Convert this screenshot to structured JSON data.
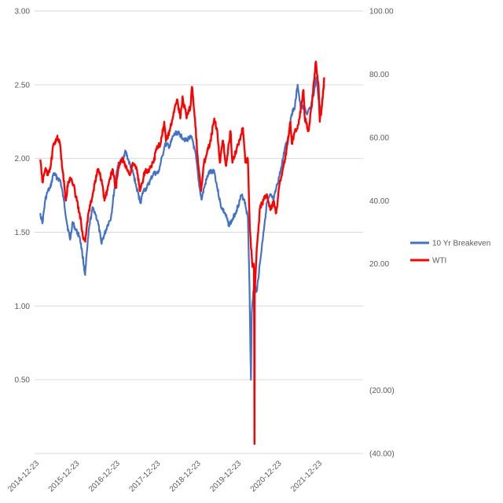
{
  "chart_data": {
    "type": "line",
    "title": "",
    "y_left": {
      "min": 0.0,
      "max": 3.0,
      "ticks": [
        "3.00",
        "2.50",
        "2.00",
        "1.50",
        "1.00",
        "0.50",
        ""
      ]
    },
    "y_right": {
      "min": -40,
      "max": 100,
      "ticks": [
        "100.00",
        "80.00",
        "60.00",
        "40.00",
        "20.00",
        "",
        "(20.00)",
        "(40.00)"
      ]
    },
    "x_ticks": [
      "2014-12-23",
      "2015-12-23",
      "2016-12-23",
      "2017-12-23",
      "2018-12-23",
      "2019-12-23",
      "2020-12-23",
      "2021-12-23"
    ],
    "grid": "horizontal",
    "legend_position": "right",
    "series": [
      {
        "name": "10 Yr Breakeven",
        "axis": "left",
        "color": "#4472C4",
        "points": [
          [
            "2015-01-01",
            1.63
          ],
          [
            "2015-01-20",
            1.56
          ],
          [
            "2015-02-15",
            1.72
          ],
          [
            "2015-03-10",
            1.78
          ],
          [
            "2015-04-01",
            1.8
          ],
          [
            "2015-05-01",
            1.9
          ],
          [
            "2015-06-01",
            1.87
          ],
          [
            "2015-07-01",
            1.85
          ],
          [
            "2015-08-01",
            1.72
          ],
          [
            "2015-09-01",
            1.55
          ],
          [
            "2015-09-28",
            1.45
          ],
          [
            "2015-10-20",
            1.57
          ],
          [
            "2015-11-15",
            1.52
          ],
          [
            "2015-12-23",
            1.47
          ],
          [
            "2016-01-15",
            1.36
          ],
          [
            "2016-02-10",
            1.21
          ],
          [
            "2016-02-28",
            1.38
          ],
          [
            "2016-03-20",
            1.55
          ],
          [
            "2016-04-20",
            1.67
          ],
          [
            "2016-05-15",
            1.62
          ],
          [
            "2016-06-10",
            1.55
          ],
          [
            "2016-07-05",
            1.43
          ],
          [
            "2016-08-01",
            1.48
          ],
          [
            "2016-09-01",
            1.55
          ],
          [
            "2016-10-01",
            1.6
          ],
          [
            "2016-11-10",
            1.85
          ],
          [
            "2016-12-01",
            1.95
          ],
          [
            "2017-01-15",
            2.0
          ],
          [
            "2017-02-10",
            2.05
          ],
          [
            "2017-03-10",
            1.98
          ],
          [
            "2017-04-20",
            1.9
          ],
          [
            "2017-05-20",
            1.8
          ],
          [
            "2017-06-25",
            1.7
          ],
          [
            "2017-07-20",
            1.78
          ],
          [
            "2017-08-20",
            1.8
          ],
          [
            "2017-09-20",
            1.85
          ],
          [
            "2017-10-20",
            1.9
          ],
          [
            "2017-12-01",
            1.9
          ],
          [
            "2018-01-10",
            2.02
          ],
          [
            "2018-02-01",
            2.1
          ],
          [
            "2018-03-15",
            2.08
          ],
          [
            "2018-04-15",
            2.15
          ],
          [
            "2018-05-20",
            2.18
          ],
          [
            "2018-07-01",
            2.15
          ],
          [
            "2018-08-15",
            2.12
          ],
          [
            "2018-09-15",
            2.15
          ],
          [
            "2018-10-10",
            2.12
          ],
          [
            "2018-11-10",
            2.0
          ],
          [
            "2018-12-01",
            1.85
          ],
          [
            "2018-12-28",
            1.72
          ],
          [
            "2019-01-20",
            1.8
          ],
          [
            "2019-03-01",
            1.9
          ],
          [
            "2019-04-20",
            1.92
          ],
          [
            "2019-05-20",
            1.8
          ],
          [
            "2019-06-20",
            1.68
          ],
          [
            "2019-08-01",
            1.62
          ],
          [
            "2019-09-01",
            1.55
          ],
          [
            "2019-10-01",
            1.58
          ],
          [
            "2019-11-10",
            1.65
          ],
          [
            "2019-12-23",
            1.75
          ],
          [
            "2020-01-20",
            1.72
          ],
          [
            "2020-02-20",
            1.6
          ],
          [
            "2020-03-05",
            1.15
          ],
          [
            "2020-03-12",
            0.8
          ],
          [
            "2020-03-19",
            0.5
          ],
          [
            "2020-03-26",
            0.95
          ],
          [
            "2020-04-15",
            1.15
          ],
          [
            "2020-05-10",
            1.1
          ],
          [
            "2020-06-10",
            1.3
          ],
          [
            "2020-07-10",
            1.5
          ],
          [
            "2020-08-10",
            1.7
          ],
          [
            "2020-09-10",
            1.75
          ],
          [
            "2020-10-10",
            1.72
          ],
          [
            "2020-11-10",
            1.82
          ],
          [
            "2020-12-23",
            1.95
          ],
          [
            "2021-01-20",
            2.08
          ],
          [
            "2021-02-20",
            2.15
          ],
          [
            "2021-03-20",
            2.3
          ],
          [
            "2021-04-20",
            2.35
          ],
          [
            "2021-05-15",
            2.5
          ],
          [
            "2021-06-10",
            2.35
          ],
          [
            "2021-07-10",
            2.35
          ],
          [
            "2021-08-10",
            2.3
          ],
          [
            "2021-09-10",
            2.35
          ],
          [
            "2021-10-10",
            2.45
          ],
          [
            "2021-10-30",
            2.55
          ],
          [
            "2021-11-20",
            2.4
          ],
          [
            "2021-12-10",
            2.3
          ],
          [
            "2021-12-28",
            2.42
          ],
          [
            "2022-01-10",
            2.5
          ]
        ]
      },
      {
        "name": "WTI",
        "axis": "right",
        "color": "#FF0000",
        "points": [
          [
            "2015-01-01",
            53
          ],
          [
            "2015-01-20",
            46
          ],
          [
            "2015-02-15",
            50
          ],
          [
            "2015-03-10",
            48
          ],
          [
            "2015-04-01",
            50
          ],
          [
            "2015-05-01",
            58
          ],
          [
            "2015-06-01",
            60
          ],
          [
            "2015-06-28",
            58
          ],
          [
            "2015-07-20",
            50
          ],
          [
            "2015-08-20",
            40
          ],
          [
            "2015-09-10",
            46
          ],
          [
            "2015-10-05",
            47
          ],
          [
            "2015-11-01",
            45
          ],
          [
            "2015-11-20",
            41
          ],
          [
            "2015-12-23",
            36
          ],
          [
            "2016-01-20",
            29
          ],
          [
            "2016-02-11",
            27
          ],
          [
            "2016-03-10",
            36
          ],
          [
            "2016-04-15",
            41
          ],
          [
            "2016-05-20",
            48
          ],
          [
            "2016-06-10",
            50
          ],
          [
            "2016-07-15",
            45
          ],
          [
            "2016-08-03",
            40
          ],
          [
            "2016-09-01",
            44
          ],
          [
            "2016-10-15",
            50
          ],
          [
            "2016-11-14",
            44
          ],
          [
            "2016-12-15",
            52
          ],
          [
            "2017-01-20",
            53
          ],
          [
            "2017-03-20",
            48
          ],
          [
            "2017-04-15",
            52
          ],
          [
            "2017-05-20",
            50
          ],
          [
            "2017-06-21",
            43
          ],
          [
            "2017-08-01",
            49
          ],
          [
            "2017-09-15",
            50
          ],
          [
            "2017-10-20",
            52
          ],
          [
            "2017-11-20",
            57
          ],
          [
            "2017-12-23",
            58
          ],
          [
            "2018-01-25",
            65
          ],
          [
            "2018-02-09",
            59
          ],
          [
            "2018-03-15",
            62
          ],
          [
            "2018-04-20",
            68
          ],
          [
            "2018-05-20",
            72
          ],
          [
            "2018-06-20",
            66
          ],
          [
            "2018-07-10",
            73
          ],
          [
            "2018-08-15",
            66
          ],
          [
            "2018-09-20",
            70
          ],
          [
            "2018-10-03",
            76
          ],
          [
            "2018-10-30",
            66
          ],
          [
            "2018-11-20",
            55
          ],
          [
            "2018-12-24",
            43
          ],
          [
            "2019-01-20",
            52
          ],
          [
            "2019-02-20",
            56
          ],
          [
            "2019-03-20",
            59
          ],
          [
            "2019-04-23",
            66
          ],
          [
            "2019-05-20",
            62
          ],
          [
            "2019-06-12",
            52
          ],
          [
            "2019-07-10",
            59
          ],
          [
            "2019-08-07",
            51
          ],
          [
            "2019-09-16",
            62
          ],
          [
            "2019-10-03",
            52
          ],
          [
            "2019-11-15",
            57
          ],
          [
            "2019-12-23",
            61
          ],
          [
            "2020-01-06",
            63
          ],
          [
            "2020-01-30",
            52
          ],
          [
            "2020-02-20",
            53
          ],
          [
            "2020-03-09",
            31
          ],
          [
            "2020-03-30",
            20
          ],
          [
            "2020-04-15",
            19
          ],
          [
            "2020-04-20",
            -37
          ],
          [
            "2020-04-21",
            10
          ],
          [
            "2020-05-10",
            25
          ],
          [
            "2020-06-10",
            38
          ],
          [
            "2020-07-10",
            40
          ],
          [
            "2020-08-10",
            42
          ],
          [
            "2020-09-10",
            37
          ],
          [
            "2020-10-10",
            40
          ],
          [
            "2020-11-02",
            36
          ],
          [
            "2020-12-01",
            45
          ],
          [
            "2020-12-23",
            48
          ],
          [
            "2021-01-20",
            53
          ],
          [
            "2021-02-20",
            60
          ],
          [
            "2021-03-10",
            65
          ],
          [
            "2021-03-23",
            58
          ],
          [
            "2021-04-20",
            62
          ],
          [
            "2021-05-20",
            64
          ],
          [
            "2021-06-20",
            71
          ],
          [
            "2021-07-06",
            75
          ],
          [
            "2021-07-19",
            66
          ],
          [
            "2021-08-20",
            62
          ],
          [
            "2021-09-20",
            70
          ],
          [
            "2021-10-10",
            78
          ],
          [
            "2021-10-26",
            84
          ],
          [
            "2021-11-20",
            76
          ],
          [
            "2021-12-01",
            65
          ],
          [
            "2021-12-20",
            70
          ],
          [
            "2022-01-10",
            79
          ]
        ]
      }
    ]
  }
}
